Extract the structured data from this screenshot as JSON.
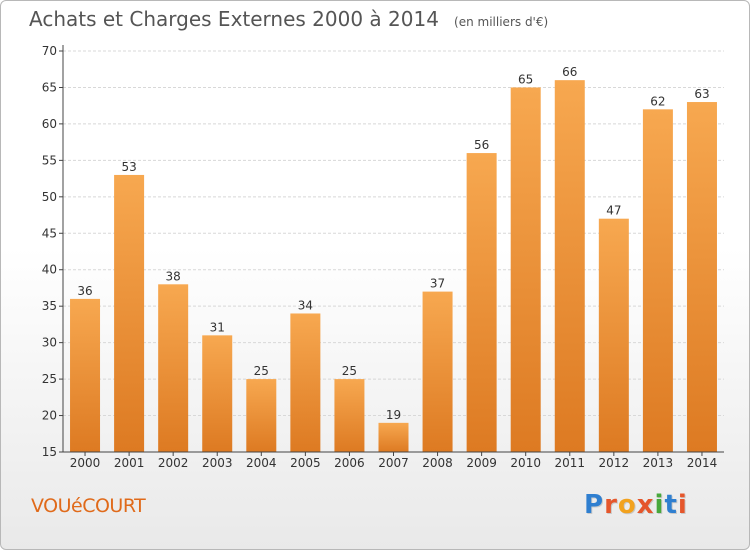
{
  "header": {
    "title": "Achats et Charges Externes 2000 à 2014",
    "subtitle": "(en milliers d'€)"
  },
  "footer": {
    "commune": "VOUéCOURT",
    "logo_text": "Proxiti",
    "logo_colors": [
      "#2f7fd0",
      "#e5562b",
      "#f2a21e",
      "#e5562b",
      "#48a83b",
      "#2f7fd0",
      "#e5562b"
    ]
  },
  "colors": {
    "bar_light": "#f7a850",
    "bar_dark": "#dd7a22",
    "grid": "#d8d8d8",
    "axis": "#444444",
    "text": "#333333"
  },
  "chart_data": {
    "type": "bar",
    "categories": [
      "2000",
      "2001",
      "2002",
      "2003",
      "2004",
      "2005",
      "2006",
      "2007",
      "2008",
      "2009",
      "2010",
      "2011",
      "2012",
      "2013",
      "2014"
    ],
    "values": [
      36,
      53,
      38,
      31,
      25,
      34,
      25,
      19,
      37,
      56,
      65,
      66,
      47,
      62,
      63
    ],
    "data_labels": [
      "36",
      "53",
      "38",
      "31",
      "25",
      "34",
      "25",
      "19",
      "37",
      "56",
      "65",
      "66",
      "47",
      "62",
      "63"
    ],
    "y_ticks": [
      15,
      20,
      25,
      30,
      35,
      40,
      45,
      50,
      55,
      60,
      65,
      70
    ],
    "ylim": [
      15,
      70
    ],
    "grid": true,
    "legend": "none"
  }
}
